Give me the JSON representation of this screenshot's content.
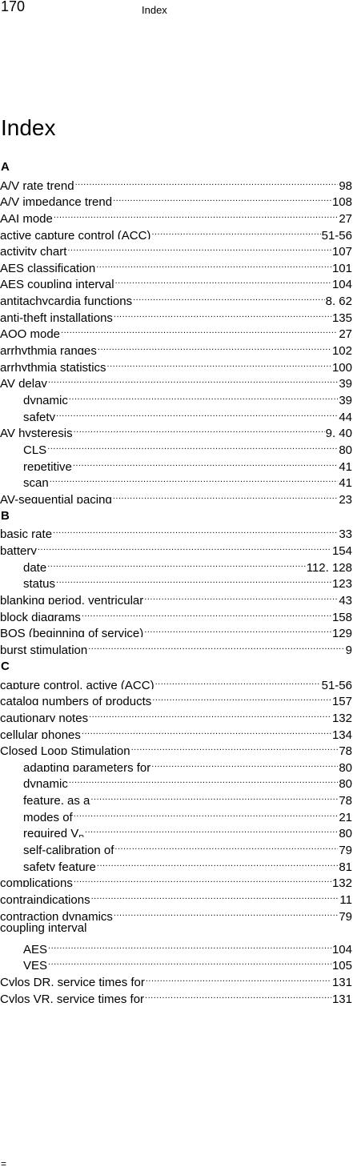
{
  "header": {
    "page_number": "170",
    "running_head": "Index"
  },
  "title": "Index",
  "footer_mark": "=",
  "sections": [
    {
      "letter": "A",
      "entries": [
        {
          "term": "A/V rate trend",
          "pages": "98",
          "sub": false
        },
        {
          "term": "A/V impedance trend",
          "pages": "108",
          "sub": false
        },
        {
          "term": "AAI mode",
          "pages": "27",
          "sub": false
        },
        {
          "term": "active capture control (ACC)",
          "pages": "51-56",
          "sub": false
        },
        {
          "term": "activity chart",
          "pages": "107",
          "sub": false
        },
        {
          "term": "AES classification",
          "pages": "101",
          "sub": false
        },
        {
          "term": "AES coupling interval",
          "pages": "104",
          "sub": false
        },
        {
          "term": "antitachycardia functions",
          "pages": "8, 62",
          "sub": false
        },
        {
          "term": "anti-theft installations",
          "pages": "135",
          "sub": false
        },
        {
          "term": "AOO mode",
          "pages": "27",
          "sub": false
        },
        {
          "term": "arrhythmia ranges",
          "pages": "102",
          "sub": false
        },
        {
          "term": "arrhythmia statistics",
          "pages": "100",
          "sub": false
        },
        {
          "term": "AV delay",
          "pages": "39",
          "sub": false
        },
        {
          "term": "dynamic",
          "pages": "39",
          "sub": true
        },
        {
          "term": "safety",
          "pages": "44",
          "sub": true
        },
        {
          "term": "AV hysteresis",
          "pages": "9, 40",
          "sub": false
        },
        {
          "term": "CLS",
          "pages": "80",
          "sub": true
        },
        {
          "term": "repetitive",
          "pages": "41",
          "sub": true
        },
        {
          "term": "scan",
          "pages": "41",
          "sub": true
        },
        {
          "term": "AV-sequential pacing",
          "pages": "23",
          "sub": false
        }
      ]
    },
    {
      "letter": "B",
      "entries": [
        {
          "term": "basic rate",
          "pages": "33",
          "sub": false
        },
        {
          "term": "battery",
          "pages": "154",
          "sub": false
        },
        {
          "term": "date",
          "pages": "112, 128",
          "sub": true
        },
        {
          "term": "status",
          "pages": "123",
          "sub": true
        },
        {
          "term": "blanking period, ventricular",
          "pages": "43",
          "sub": false
        },
        {
          "term": "block diagrams",
          "pages": "158",
          "sub": false
        },
        {
          "term": "BOS (beginning of service)",
          "pages": "129",
          "sub": false
        },
        {
          "term": "burst stimulation",
          "pages": "9",
          "sub": false
        }
      ]
    },
    {
      "letter": "C",
      "entries": [
        {
          "term": "capture control, active (ACC)",
          "pages": "51-56",
          "sub": false
        },
        {
          "term": "catalog numbers of products",
          "pages": "157",
          "sub": false
        },
        {
          "term": "cautionary notes",
          "pages": "132",
          "sub": false
        },
        {
          "term": "cellular phones",
          "pages": "134",
          "sub": false
        },
        {
          "term": "Closed Loop Stimulation",
          "pages": "78",
          "sub": false
        },
        {
          "term": "adapting parameters for",
          "pages": "80",
          "sub": true
        },
        {
          "term": "dynamic",
          "pages": "80",
          "sub": true
        },
        {
          "term": "feature, as a",
          "pages": "78",
          "sub": true
        },
        {
          "term": "modes of",
          "pages": "21",
          "sub": true
        },
        {
          "term": "required V",
          "pages": "80",
          "sub": true,
          "subscript": "P"
        },
        {
          "term": "self-calibration of",
          "pages": "79",
          "sub": true
        },
        {
          "term": "safety feature",
          "pages": "81",
          "sub": true
        },
        {
          "term": "complications",
          "pages": "132",
          "sub": false
        },
        {
          "term": "contraindications",
          "pages": "11",
          "sub": false
        },
        {
          "term": "contraction dynamics",
          "pages": "79",
          "sub": false
        },
        {
          "term": "coupling interval",
          "pages": "",
          "sub": false
        },
        {
          "term": "AES",
          "pages": "104",
          "sub": true
        },
        {
          "term": "VES",
          "pages": "105",
          "sub": true
        },
        {
          "term": "Cylos DR, service times for",
          "pages": "131",
          "sub": false
        },
        {
          "term": "Cylos VR, service times for",
          "pages": "131",
          "sub": false
        }
      ]
    }
  ]
}
